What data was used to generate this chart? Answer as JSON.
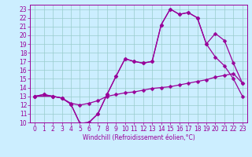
{
  "xlabel": "Windchill (Refroidissement éolien,°C)",
  "bg_color": "#cceeff",
  "line_color": "#990099",
  "grid_color": "#99cccc",
  "xlim": [
    -0.5,
    23.5
  ],
  "ylim": [
    10,
    23.5
  ],
  "xticks": [
    0,
    1,
    2,
    3,
    4,
    5,
    6,
    7,
    8,
    9,
    10,
    11,
    12,
    13,
    14,
    15,
    16,
    17,
    18,
    19,
    20,
    21,
    22,
    23
  ],
  "yticks": [
    10,
    11,
    12,
    13,
    14,
    15,
    16,
    17,
    18,
    19,
    20,
    21,
    22,
    23
  ],
  "curve1_x": [
    0,
    1,
    2,
    3,
    4,
    5,
    6,
    7,
    8,
    9,
    10,
    11,
    12,
    13,
    14,
    15,
    16,
    17,
    18,
    19,
    20,
    21,
    22,
    23
  ],
  "curve1_y": [
    13.0,
    13.2,
    13.0,
    12.8,
    12.1,
    9.9,
    10.0,
    11.0,
    13.2,
    15.3,
    17.3,
    17.0,
    16.8,
    17.0,
    21.2,
    23.0,
    22.4,
    22.6,
    22.0,
    19.0,
    20.2,
    19.4,
    16.8,
    14.5
  ],
  "curve2_x": [
    0,
    2,
    3,
    4,
    5,
    6,
    7,
    8,
    9,
    10,
    11,
    12,
    13,
    14,
    15,
    16,
    17,
    18,
    19,
    20,
    21,
    22,
    23
  ],
  "curve2_y": [
    13.0,
    13.0,
    12.8,
    12.1,
    9.9,
    10.0,
    11.0,
    13.2,
    15.3,
    17.3,
    17.0,
    16.8,
    17.0,
    21.2,
    23.0,
    22.4,
    22.6,
    22.0,
    19.0,
    17.5,
    16.5,
    15.0,
    13.0
  ],
  "curve3_x": [
    0,
    1,
    2,
    3,
    4,
    5,
    6,
    7,
    8,
    9,
    10,
    11,
    12,
    13,
    14,
    15,
    16,
    17,
    18,
    19,
    20,
    21,
    22,
    23
  ],
  "curve3_y": [
    13.0,
    13.2,
    13.0,
    12.8,
    12.2,
    12.0,
    12.2,
    12.5,
    13.0,
    13.2,
    13.4,
    13.5,
    13.7,
    13.9,
    14.0,
    14.1,
    14.3,
    14.5,
    14.7,
    14.9,
    15.2,
    15.4,
    15.6,
    14.5
  ],
  "markersize": 2.5,
  "linewidth": 0.9,
  "tick_fontsize": 5.5,
  "xlabel_fontsize": 5.5
}
